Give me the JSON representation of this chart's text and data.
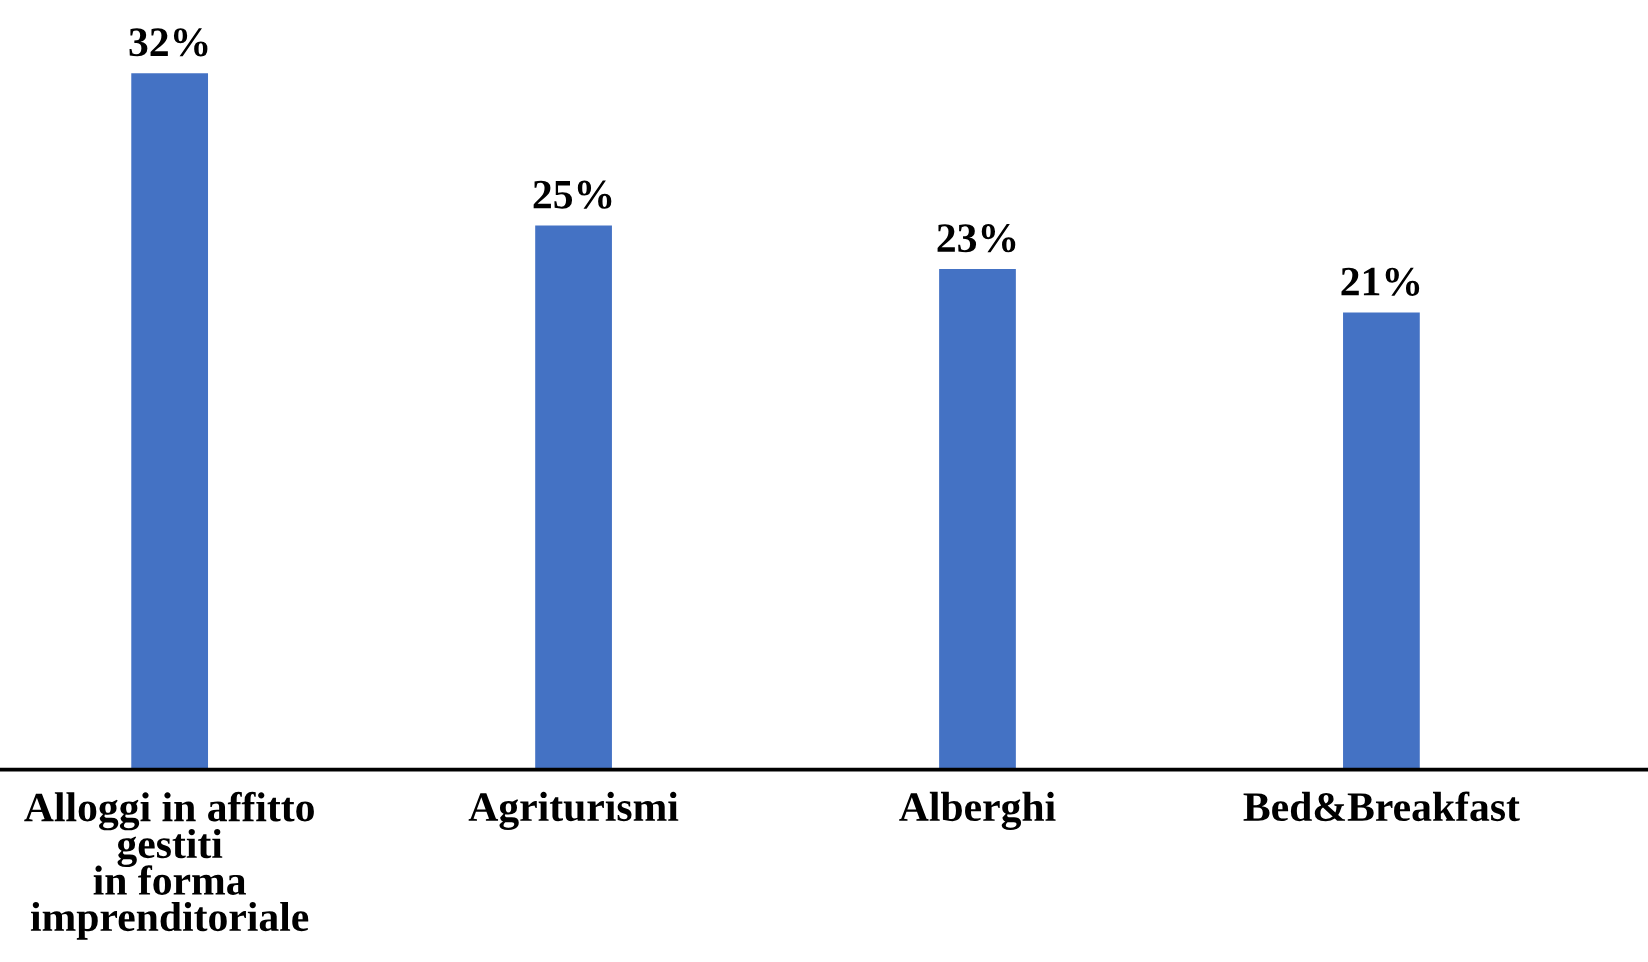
{
  "chart_data": {
    "type": "bar",
    "categories": [
      "Alloggi in affitto\ngestiti\nin forma\nimprenditoriale",
      "Agriturismi",
      "Alberghi",
      "Bed&Breakfast"
    ],
    "values": [
      32,
      25,
      23,
      21
    ],
    "value_labels": [
      "32%",
      "25%",
      "23%",
      "21%"
    ],
    "color": "#4472c4",
    "grid": false,
    "legend": false
  }
}
